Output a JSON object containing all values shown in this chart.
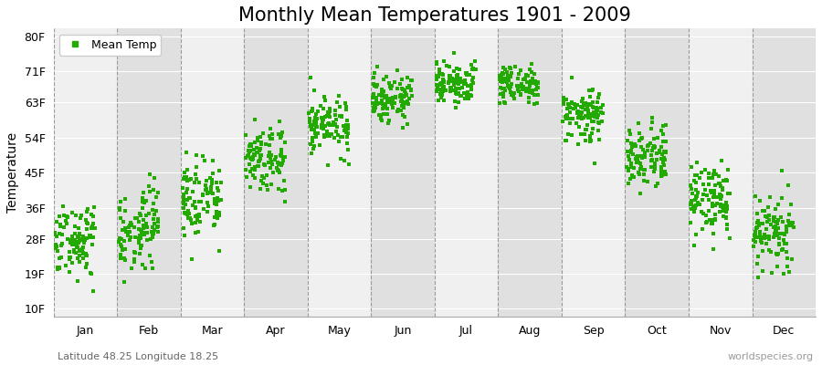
{
  "title": "Monthly Mean Temperatures 1901 - 2009",
  "ylabel": "Temperature",
  "subtitle_left": "Latitude 48.25 Longitude 18.25",
  "subtitle_right": "worldspecies.org",
  "ytick_labels": [
    "10F",
    "19F",
    "28F",
    "36F",
    "45F",
    "54F",
    "63F",
    "71F",
    "80F"
  ],
  "ytick_values": [
    10,
    19,
    28,
    36,
    45,
    54,
    63,
    71,
    80
  ],
  "months": [
    "Jan",
    "Feb",
    "Mar",
    "Apr",
    "May",
    "Jun",
    "Jul",
    "Aug",
    "Sep",
    "Oct",
    "Nov",
    "Dec"
  ],
  "mean_temps_F": [
    27.5,
    30.0,
    38.0,
    48.0,
    57.5,
    64.0,
    68.0,
    67.5,
    60.0,
    49.0,
    37.5,
    29.5
  ],
  "std_devs_F": [
    5.0,
    5.5,
    5.0,
    4.0,
    3.5,
    3.0,
    2.5,
    2.5,
    3.5,
    4.0,
    4.5,
    5.0
  ],
  "n_years": 109,
  "dot_color": "#22aa00",
  "dot_size": 7,
  "plot_bg_light": "#f0f0f0",
  "plot_bg_dark": "#e0e0e0",
  "ylim": [
    8,
    82
  ],
  "title_fontsize": 15,
  "axis_label_fontsize": 10,
  "tick_fontsize": 9,
  "legend_fontsize": 9
}
